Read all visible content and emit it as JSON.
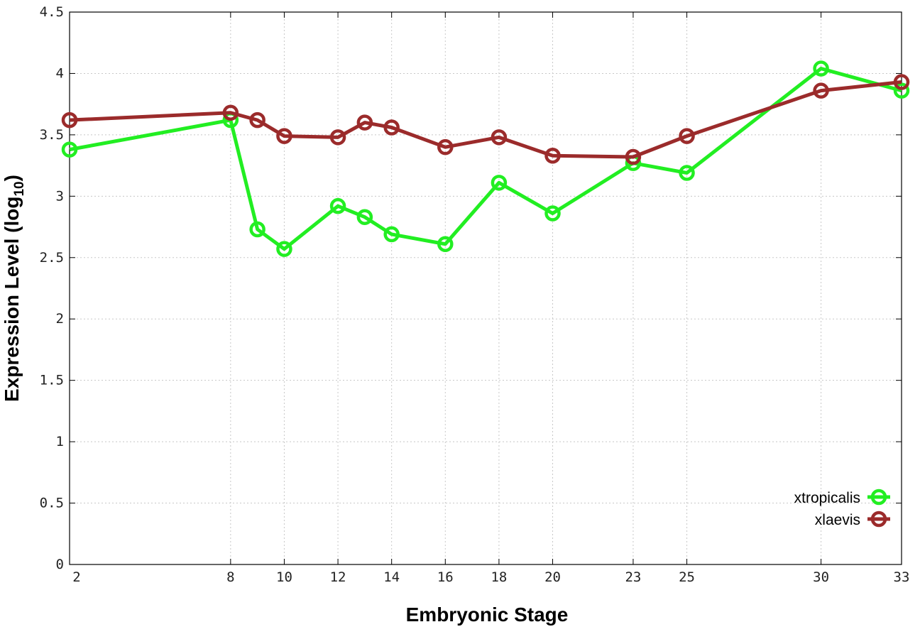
{
  "chart_data": {
    "type": "line",
    "xlabel": "Embryonic Stage",
    "ylabel_main": "Expression Level (log",
    "ylabel_sub": "10",
    "ylabel_close": ")",
    "x": [
      2,
      8,
      9,
      10,
      12,
      13,
      14,
      16,
      18,
      20,
      23,
      25,
      30,
      33
    ],
    "x_ticks": [
      2,
      8,
      10,
      12,
      14,
      16,
      18,
      20,
      23,
      25,
      30,
      33
    ],
    "xlim": [
      2,
      33
    ],
    "y_ticks": [
      "0",
      "0.5",
      "1",
      "1.5",
      "2",
      "2.5",
      "3",
      "3.5",
      "4",
      "4.5"
    ],
    "ylim": [
      0,
      4.5
    ],
    "grid": true,
    "legend_position": "bottom-right",
    "series": [
      {
        "name": "xtropicalis",
        "color": "#22ee22",
        "values": [
          3.38,
          3.62,
          2.73,
          2.57,
          2.92,
          2.83,
          2.69,
          2.61,
          3.11,
          2.86,
          3.27,
          3.19,
          4.04,
          3.86
        ]
      },
      {
        "name": "xlaevis",
        "color": "#9b2b2b",
        "values": [
          3.62,
          3.68,
          3.62,
          3.49,
          3.48,
          3.6,
          3.56,
          3.4,
          3.48,
          3.33,
          3.32,
          3.49,
          3.86,
          3.93
        ]
      }
    ]
  }
}
